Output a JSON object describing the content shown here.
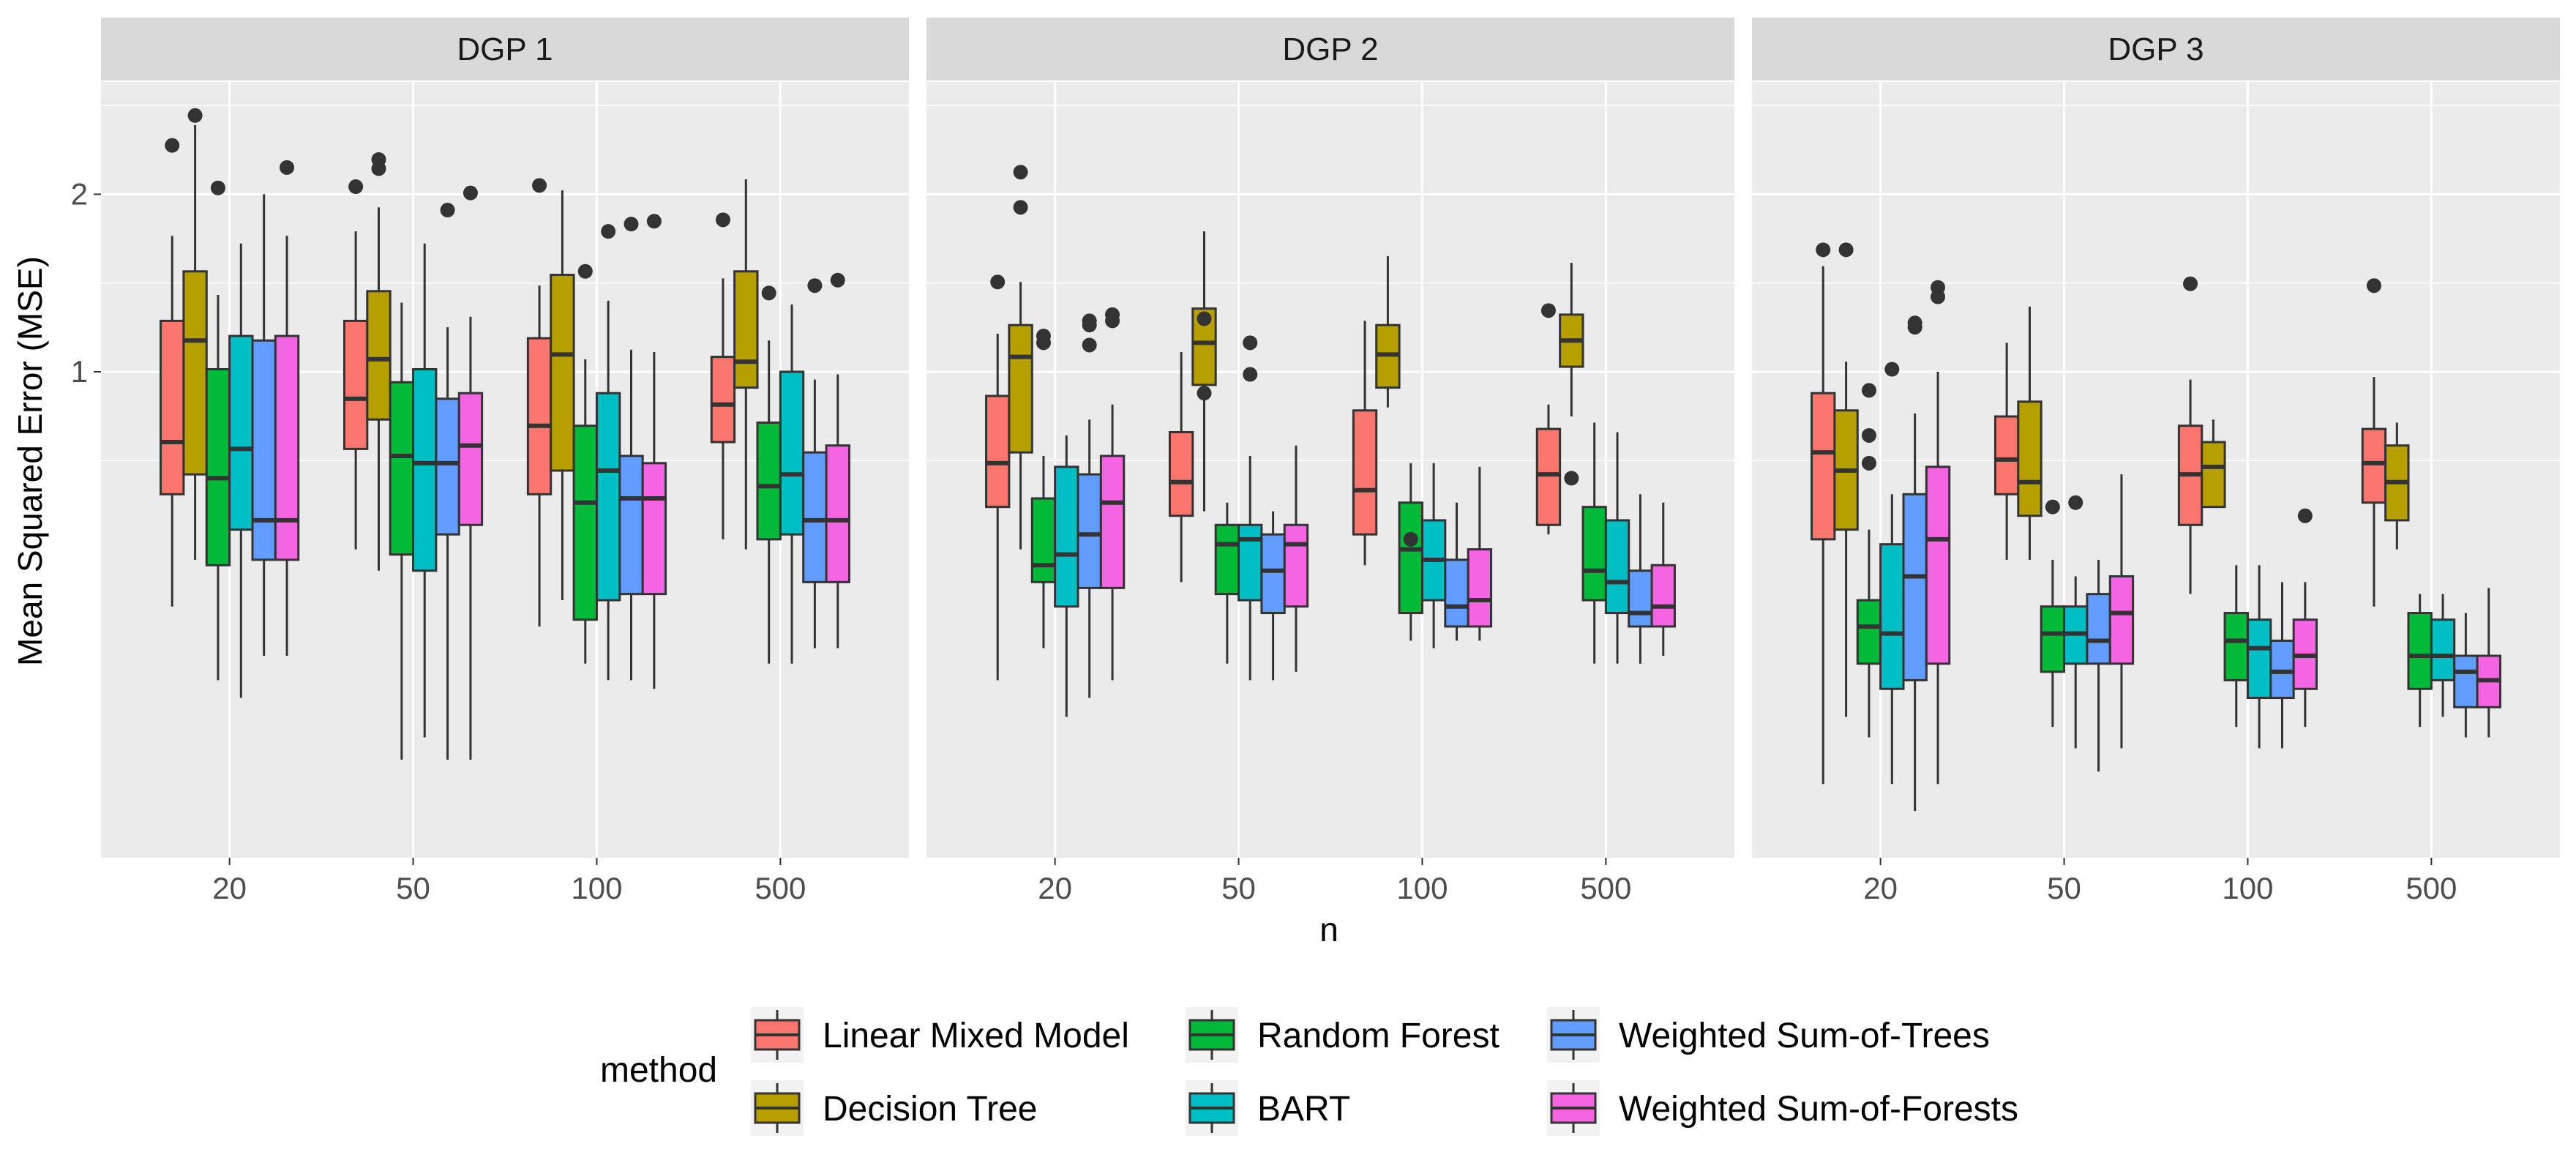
{
  "chart_data": {
    "type": "boxplot",
    "title": "",
    "xlabel": "n",
    "ylabel": "Mean Squared Error (MSE)",
    "y_scale": "log",
    "ylim": [
      0.15,
      3.1
    ],
    "y_ticks": [
      {
        "value": 1,
        "label": "1"
      },
      {
        "value": 2,
        "label": "2"
      }
    ],
    "categories": [
      "20",
      "50",
      "100",
      "500"
    ],
    "legend_title": "method",
    "legend_position": "bottom",
    "methods": [
      {
        "name": "Linear Mixed Model",
        "color": "#F8766D"
      },
      {
        "name": "Decision Tree",
        "color": "#B79F00"
      },
      {
        "name": "Random Forest",
        "color": "#00BA38"
      },
      {
        "name": "BART",
        "color": "#00BFC4"
      },
      {
        "name": "Weighted Sum-of-Trees",
        "color": "#619CFF"
      },
      {
        "name": "Weighted Sum-of-Forests",
        "color": "#F564E3"
      }
    ],
    "panels": [
      {
        "title": "DGP 1",
        "boxes": [
          [
            {
              "lw": 0.4,
              "q1": 0.62,
              "med": 0.76,
              "q3": 1.22,
              "uw": 1.7,
              "out": [
                2.42
              ]
            },
            {
              "lw": 0.48,
              "q1": 0.67,
              "med": 1.13,
              "q3": 1.48,
              "uw": 2.62,
              "out": [
                2.72
              ]
            },
            {
              "lw": 0.3,
              "q1": 0.47,
              "med": 0.66,
              "q3": 1.01,
              "uw": 1.35,
              "out": [
                2.05
              ]
            },
            {
              "lw": 0.28,
              "q1": 0.54,
              "med": 0.74,
              "q3": 1.15,
              "uw": 1.65,
              "out": []
            },
            {
              "lw": 0.33,
              "q1": 0.48,
              "med": 0.56,
              "q3": 1.13,
              "uw": 2.0,
              "out": []
            },
            {
              "lw": 0.33,
              "q1": 0.48,
              "med": 0.56,
              "q3": 1.15,
              "uw": 1.7,
              "out": [
                2.22
              ]
            }
          ],
          [
            {
              "lw": 0.5,
              "q1": 0.74,
              "med": 0.9,
              "q3": 1.22,
              "uw": 1.73,
              "out": [
                2.06
              ]
            },
            {
              "lw": 0.46,
              "q1": 0.83,
              "med": 1.05,
              "q3": 1.37,
              "uw": 1.9,
              "out": [
                2.21,
                2.29
              ]
            },
            {
              "lw": 0.22,
              "q1": 0.49,
              "med": 0.72,
              "q3": 0.96,
              "uw": 1.31,
              "out": []
            },
            {
              "lw": 0.24,
              "q1": 0.46,
              "med": 0.7,
              "q3": 1.01,
              "uw": 1.65,
              "out": []
            },
            {
              "lw": 0.22,
              "q1": 0.53,
              "med": 0.7,
              "q3": 0.9,
              "uw": 1.19,
              "out": [
                1.88
              ]
            },
            {
              "lw": 0.22,
              "q1": 0.55,
              "med": 0.75,
              "q3": 0.92,
              "uw": 1.24,
              "out": [
                2.01
              ]
            }
          ],
          [
            {
              "lw": 0.37,
              "q1": 0.62,
              "med": 0.81,
              "q3": 1.14,
              "uw": 1.4,
              "out": [
                2.07
              ]
            },
            {
              "lw": 0.41,
              "q1": 0.68,
              "med": 1.07,
              "q3": 1.46,
              "uw": 2.03,
              "out": []
            },
            {
              "lw": 0.32,
              "q1": 0.38,
              "med": 0.6,
              "q3": 0.81,
              "uw": 1.05,
              "out": [
                1.48
              ]
            },
            {
              "lw": 0.3,
              "q1": 0.41,
              "med": 0.68,
              "q3": 0.92,
              "uw": 1.32,
              "out": [
                1.73
              ]
            },
            {
              "lw": 0.3,
              "q1": 0.42,
              "med": 0.61,
              "q3": 0.72,
              "uw": 1.09,
              "out": [
                1.78
              ]
            },
            {
              "lw": 0.29,
              "q1": 0.42,
              "med": 0.61,
              "q3": 0.7,
              "uw": 1.08,
              "out": [
                1.8
              ]
            }
          ],
          [
            {
              "lw": 0.52,
              "q1": 0.76,
              "med": 0.88,
              "q3": 1.06,
              "uw": 1.44,
              "out": [
                1.81
              ]
            },
            {
              "lw": 0.5,
              "q1": 0.94,
              "med": 1.04,
              "q3": 1.48,
              "uw": 2.12,
              "out": []
            },
            {
              "lw": 0.32,
              "q1": 0.52,
              "med": 0.64,
              "q3": 0.82,
              "uw": 1.13,
              "out": [
                1.36
              ]
            },
            {
              "lw": 0.32,
              "q1": 0.53,
              "med": 0.67,
              "q3": 1.0,
              "uw": 1.3,
              "out": []
            },
            {
              "lw": 0.34,
              "q1": 0.44,
              "med": 0.56,
              "q3": 0.73,
              "uw": 0.97,
              "out": [
                1.4
              ]
            },
            {
              "lw": 0.34,
              "q1": 0.44,
              "med": 0.56,
              "q3": 0.75,
              "uw": 0.99,
              "out": [
                1.43
              ]
            }
          ]
        ]
      },
      {
        "title": "DGP 2",
        "boxes": [
          [
            {
              "lw": 0.3,
              "q1": 0.59,
              "med": 0.7,
              "q3": 0.91,
              "uw": 1.16,
              "out": [
                1.42
              ]
            },
            {
              "lw": 0.5,
              "q1": 0.73,
              "med": 1.06,
              "q3": 1.2,
              "uw": 1.42,
              "out": [
                1.9,
                2.18
              ]
            },
            {
              "lw": 0.34,
              "q1": 0.44,
              "med": 0.47,
              "q3": 0.61,
              "uw": 0.72,
              "out": [
                1.12,
                1.15
              ]
            },
            {
              "lw": 0.26,
              "q1": 0.4,
              "med": 0.49,
              "q3": 0.69,
              "uw": 0.78,
              "out": []
            },
            {
              "lw": 0.28,
              "q1": 0.43,
              "med": 0.53,
              "q3": 0.67,
              "uw": 0.83,
              "out": [
                1.11,
                1.2,
                1.22
              ]
            },
            {
              "lw": 0.3,
              "q1": 0.43,
              "med": 0.6,
              "q3": 0.72,
              "uw": 0.88,
              "out": [
                1.22,
                1.25
              ]
            }
          ],
          [
            {
              "lw": 0.44,
              "q1": 0.57,
              "med": 0.65,
              "q3": 0.79,
              "uw": 1.08,
              "out": []
            },
            {
              "lw": 0.58,
              "q1": 0.95,
              "med": 1.12,
              "q3": 1.28,
              "uw": 1.73,
              "out": [
                0.92,
                1.23
              ]
            },
            {
              "lw": 0.32,
              "q1": 0.42,
              "med": 0.51,
              "q3": 0.55,
              "uw": 0.6,
              "out": []
            },
            {
              "lw": 0.3,
              "q1": 0.41,
              "med": 0.52,
              "q3": 0.55,
              "uw": 0.72,
              "out": [
                0.99,
                1.12
              ]
            },
            {
              "lw": 0.3,
              "q1": 0.39,
              "med": 0.46,
              "q3": 0.53,
              "uw": 0.58,
              "out": []
            },
            {
              "lw": 0.31,
              "q1": 0.4,
              "med": 0.51,
              "q3": 0.55,
              "uw": 0.75,
              "out": []
            }
          ],
          [
            {
              "lw": 0.47,
              "q1": 0.53,
              "med": 0.63,
              "q3": 0.86,
              "uw": 1.22,
              "out": []
            },
            {
              "lw": 0.87,
              "q1": 0.94,
              "med": 1.07,
              "q3": 1.2,
              "uw": 1.57,
              "out": []
            },
            {
              "lw": 0.35,
              "q1": 0.39,
              "med": 0.5,
              "q3": 0.6,
              "uw": 0.7,
              "out": [
                0.52
              ]
            },
            {
              "lw": 0.34,
              "q1": 0.41,
              "med": 0.48,
              "q3": 0.56,
              "uw": 0.7,
              "out": []
            },
            {
              "lw": 0.35,
              "q1": 0.37,
              "med": 0.4,
              "q3": 0.48,
              "uw": 0.6,
              "out": []
            },
            {
              "lw": 0.35,
              "q1": 0.37,
              "med": 0.41,
              "q3": 0.5,
              "uw": 0.69,
              "out": []
            }
          ],
          [
            {
              "lw": 0.53,
              "q1": 0.55,
              "med": 0.67,
              "q3": 0.8,
              "uw": 0.88,
              "out": [
                1.27
              ]
            },
            {
              "lw": 0.84,
              "q1": 1.02,
              "med": 1.13,
              "q3": 1.25,
              "uw": 1.53,
              "out": [
                0.66
              ]
            },
            {
              "lw": 0.32,
              "q1": 0.41,
              "med": 0.46,
              "q3": 0.59,
              "uw": 0.82,
              "out": []
            },
            {
              "lw": 0.32,
              "q1": 0.39,
              "med": 0.44,
              "q3": 0.56,
              "uw": 0.79,
              "out": []
            },
            {
              "lw": 0.32,
              "q1": 0.37,
              "med": 0.39,
              "q3": 0.46,
              "uw": 0.62,
              "out": []
            },
            {
              "lw": 0.33,
              "q1": 0.37,
              "med": 0.4,
              "q3": 0.47,
              "uw": 0.6,
              "out": []
            }
          ]
        ]
      },
      {
        "title": "DGP 3",
        "boxes": [
          [
            {
              "lw": 0.2,
              "q1": 0.52,
              "med": 0.73,
              "q3": 0.92,
              "uw": 1.51,
              "out": [
                1.61
              ]
            },
            {
              "lw": 0.26,
              "q1": 0.54,
              "med": 0.68,
              "q3": 0.86,
              "uw": 1.04,
              "out": [
                1.61
              ]
            },
            {
              "lw": 0.24,
              "q1": 0.32,
              "med": 0.37,
              "q3": 0.41,
              "uw": 0.54,
              "out": [
                0.7,
                0.78,
                0.93
              ]
            },
            {
              "lw": 0.2,
              "q1": 0.29,
              "med": 0.36,
              "q3": 0.51,
              "uw": 0.62,
              "out": [
                1.01
              ]
            },
            {
              "lw": 0.18,
              "q1": 0.3,
              "med": 0.45,
              "q3": 0.62,
              "uw": 0.85,
              "out": [
                1.19,
                1.21
              ]
            },
            {
              "lw": 0.2,
              "q1": 0.32,
              "med": 0.52,
              "q3": 0.69,
              "uw": 1.0,
              "out": [
                1.34,
                1.39
              ]
            }
          ],
          [
            {
              "lw": 0.48,
              "q1": 0.62,
              "med": 0.71,
              "q3": 0.84,
              "uw": 1.12,
              "out": []
            },
            {
              "lw": 0.48,
              "q1": 0.57,
              "med": 0.65,
              "q3": 0.89,
              "uw": 1.29,
              "out": []
            },
            {
              "lw": 0.25,
              "q1": 0.31,
              "med": 0.36,
              "q3": 0.4,
              "uw": 0.48,
              "out": [
                0.59
              ]
            },
            {
              "lw": 0.23,
              "q1": 0.32,
              "med": 0.36,
              "q3": 0.4,
              "uw": 0.45,
              "out": [
                0.6
              ]
            },
            {
              "lw": 0.21,
              "q1": 0.32,
              "med": 0.35,
              "q3": 0.42,
              "uw": 0.48,
              "out": []
            },
            {
              "lw": 0.23,
              "q1": 0.32,
              "med": 0.39,
              "q3": 0.45,
              "uw": 0.67,
              "out": []
            }
          ],
          [
            {
              "lw": 0.42,
              "q1": 0.55,
              "med": 0.67,
              "q3": 0.81,
              "uw": 0.97,
              "out": [
                1.41
              ]
            },
            {
              "lw": 0.6,
              "q1": 0.59,
              "med": 0.69,
              "q3": 0.76,
              "uw": 0.83,
              "out": []
            },
            {
              "lw": 0.25,
              "q1": 0.3,
              "med": 0.35,
              "q3": 0.39,
              "uw": 0.47,
              "out": []
            },
            {
              "lw": 0.23,
              "q1": 0.28,
              "med": 0.34,
              "q3": 0.38,
              "uw": 0.47,
              "out": []
            },
            {
              "lw": 0.23,
              "q1": 0.28,
              "med": 0.31,
              "q3": 0.35,
              "uw": 0.44,
              "out": []
            },
            {
              "lw": 0.25,
              "q1": 0.29,
              "med": 0.33,
              "q3": 0.38,
              "uw": 0.44,
              "out": [
                0.57
              ]
            }
          ],
          [
            {
              "lw": 0.4,
              "q1": 0.6,
              "med": 0.7,
              "q3": 0.8,
              "uw": 0.98,
              "out": [
                1.4
              ]
            },
            {
              "lw": 0.5,
              "q1": 0.56,
              "med": 0.65,
              "q3": 0.75,
              "uw": 0.82,
              "out": []
            },
            {
              "lw": 0.25,
              "q1": 0.29,
              "med": 0.33,
              "q3": 0.39,
              "uw": 0.42,
              "out": []
            },
            {
              "lw": 0.26,
              "q1": 0.3,
              "med": 0.33,
              "q3": 0.38,
              "uw": 0.42,
              "out": []
            },
            {
              "lw": 0.24,
              "q1": 0.27,
              "med": 0.31,
              "q3": 0.33,
              "uw": 0.39,
              "out": []
            },
            {
              "lw": 0.24,
              "q1": 0.27,
              "med": 0.3,
              "q3": 0.33,
              "uw": 0.43,
              "out": []
            }
          ]
        ]
      }
    ]
  }
}
